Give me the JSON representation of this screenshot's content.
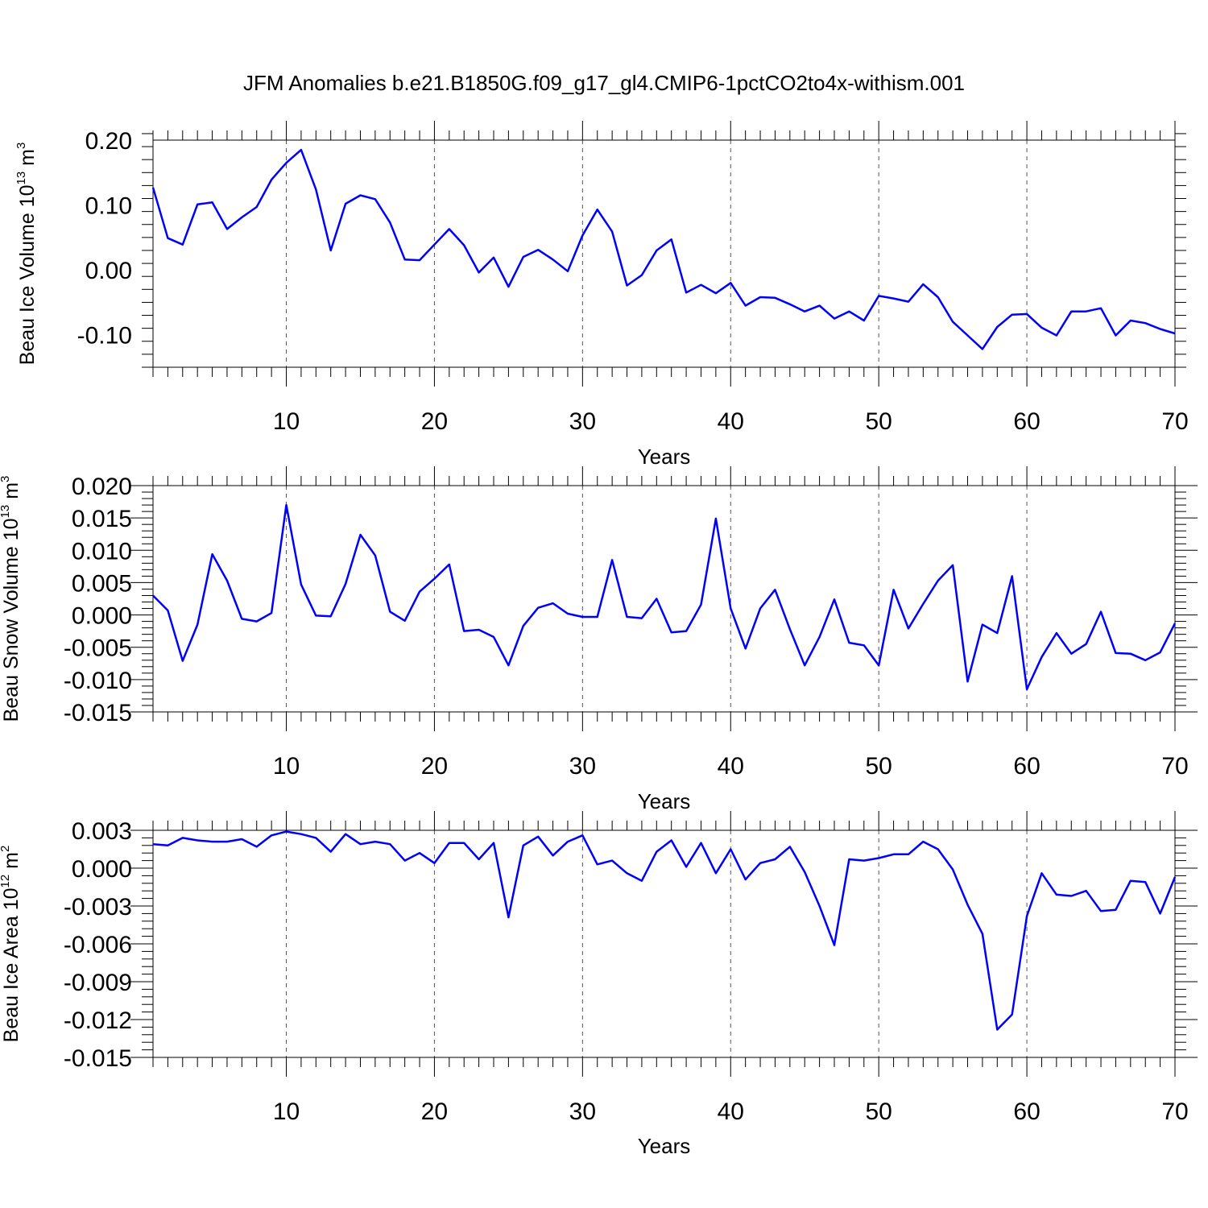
{
  "title": "JFM Anomalies b.e21.B1850G.f09_g17_gl4.CMIP6-1pctCO2to4x-withism.001",
  "series_color": "#0000ff",
  "chart_data": [
    {
      "type": "line",
      "ylabel": {
        "base": "Beau Ice Volume 10",
        "exponent": "13",
        "unit_base": " m",
        "unit_exponent": "3"
      },
      "xlabel": "Years",
      "xlim": [
        1,
        70
      ],
      "ylim": [
        -0.15,
        0.2
      ],
      "xticks": [
        "10",
        "20",
        "30",
        "40",
        "50",
        "60",
        "70"
      ],
      "yticks": [
        "-0.10",
        "0.00",
        "0.10",
        "0.20"
      ],
      "grid": "vertical dashed at major x ticks",
      "x": [
        1,
        2,
        3,
        4,
        5,
        6,
        7,
        8,
        9,
        10,
        11,
        12,
        13,
        14,
        15,
        16,
        17,
        18,
        19,
        20,
        21,
        22,
        23,
        24,
        25,
        26,
        27,
        28,
        29,
        30,
        31,
        32,
        33,
        34,
        35,
        36,
        37,
        38,
        39,
        40,
        41,
        42,
        43,
        44,
        45,
        46,
        47,
        48,
        49,
        50,
        51,
        52,
        53,
        54,
        55,
        56,
        57,
        58,
        59,
        60,
        61,
        62,
        63,
        64,
        65,
        66,
        67,
        68,
        69,
        70
      ],
      "values": [
        0.127,
        0.049,
        0.039,
        0.101,
        0.104,
        0.063,
        0.081,
        0.097,
        0.139,
        0.165,
        0.185,
        0.124,
        0.03,
        0.102,
        0.115,
        0.109,
        0.073,
        0.016,
        0.015,
        0.039,
        0.063,
        0.038,
        -0.004,
        0.019,
        -0.026,
        0.02,
        0.031,
        0.016,
        -0.002,
        0.053,
        0.093,
        0.059,
        -0.024,
        -0.008,
        0.03,
        0.047,
        -0.035,
        -0.023,
        -0.036,
        -0.02,
        -0.055,
        -0.042,
        -0.043,
        -0.053,
        -0.064,
        -0.055,
        -0.075,
        -0.064,
        -0.078,
        -0.04,
        -0.044,
        -0.049,
        -0.022,
        -0.042,
        -0.08,
        -0.101,
        -0.122,
        -0.088,
        -0.069,
        -0.068,
        -0.089,
        -0.101,
        -0.064,
        -0.064,
        -0.059,
        -0.101,
        -0.078,
        -0.082,
        -0.091,
        -0.098
      ]
    },
    {
      "type": "line",
      "ylabel": {
        "base": "Beau Snow Volume 10",
        "exponent": "13",
        "unit_base": " m",
        "unit_exponent": "3"
      },
      "xlabel": "Years",
      "xlim": [
        1,
        70
      ],
      "ylim": [
        -0.015,
        0.02
      ],
      "xticks": [
        "10",
        "20",
        "30",
        "40",
        "50",
        "60",
        "70"
      ],
      "yticks": [
        "-0.015",
        "-0.010",
        "-0.005",
        "0.000",
        "0.005",
        "0.010",
        "0.015",
        "0.020"
      ],
      "grid": "vertical dashed at major x ticks",
      "x": [
        1,
        2,
        3,
        4,
        5,
        6,
        7,
        8,
        9,
        10,
        11,
        12,
        13,
        14,
        15,
        16,
        17,
        18,
        19,
        20,
        21,
        22,
        23,
        24,
        25,
        26,
        27,
        28,
        29,
        30,
        31,
        32,
        33,
        34,
        35,
        36,
        37,
        38,
        39,
        40,
        41,
        42,
        43,
        44,
        45,
        46,
        47,
        48,
        49,
        50,
        51,
        52,
        53,
        54,
        55,
        56,
        57,
        58,
        59,
        60,
        61,
        62,
        63,
        64,
        65,
        66,
        67,
        68,
        69,
        70
      ],
      "values": [
        0.003,
        0.0007,
        -0.0071,
        -0.0015,
        0.0094,
        0.0053,
        -0.0006,
        -0.001,
        0.0003,
        0.017,
        0.0047,
        -0.0001,
        -0.0002,
        0.0048,
        0.0124,
        0.0092,
        0.0005,
        -0.0009,
        0.0036,
        0.0056,
        0.0078,
        -0.0025,
        -0.0023,
        -0.0034,
        -0.0078,
        -0.0017,
        0.0011,
        0.0018,
        0.0002,
        -0.0003,
        -0.0003,
        0.0085,
        -0.0003,
        -0.0005,
        0.0025,
        -0.0027,
        -0.0025,
        0.0016,
        0.0149,
        0.001,
        -0.0052,
        0.001,
        0.0039,
        -0.0022,
        -0.0078,
        -0.0034,
        0.0024,
        -0.0043,
        -0.0047,
        -0.0078,
        0.0039,
        -0.0021,
        0.0017,
        0.0053,
        0.0077,
        -0.0103,
        -0.0015,
        -0.0028,
        0.006,
        -0.0115,
        -0.0065,
        -0.0028,
        -0.006,
        -0.0045,
        0.0005,
        -0.0059,
        -0.006,
        -0.007,
        -0.0058,
        -0.0013
      ]
    },
    {
      "type": "line",
      "ylabel": {
        "base": "Beau Ice Area 10",
        "exponent": "12",
        "unit_base": " m",
        "unit_exponent": "2"
      },
      "xlabel": "Years",
      "xlim": [
        1,
        70
      ],
      "ylim": [
        -0.015,
        0.003
      ],
      "xticks": [
        "10",
        "20",
        "30",
        "40",
        "50",
        "60",
        "70"
      ],
      "yticks": [
        "-0.015",
        "-0.012",
        "-0.009",
        "-0.006",
        "-0.003",
        "0.000",
        "0.003"
      ],
      "grid": "vertical dashed at major x ticks",
      "x": [
        1,
        2,
        3,
        4,
        5,
        6,
        7,
        8,
        9,
        10,
        11,
        12,
        13,
        14,
        15,
        16,
        17,
        18,
        19,
        20,
        21,
        22,
        23,
        24,
        25,
        26,
        27,
        28,
        29,
        30,
        31,
        32,
        33,
        34,
        35,
        36,
        37,
        38,
        39,
        40,
        41,
        42,
        43,
        44,
        45,
        46,
        47,
        48,
        49,
        50,
        51,
        52,
        53,
        54,
        55,
        56,
        57,
        58,
        59,
        60,
        61,
        62,
        63,
        64,
        65,
        66,
        67,
        68,
        69,
        70
      ],
      "values": [
        0.0019,
        0.0018,
        0.0024,
        0.0022,
        0.0021,
        0.0021,
        0.0023,
        0.0017,
        0.0026,
        0.0029,
        0.0027,
        0.0024,
        0.0013,
        0.0027,
        0.0019,
        0.0021,
        0.0019,
        0.0006,
        0.0012,
        0.0004,
        0.002,
        0.002,
        0.0007,
        0.002,
        -0.0039,
        0.0018,
        0.0025,
        0.001,
        0.0021,
        0.0026,
        0.0003,
        0.0006,
        -0.0004,
        -0.001,
        0.0013,
        0.0022,
        0.0001,
        0.002,
        -0.0004,
        0.0015,
        -0.0009,
        0.0004,
        0.0007,
        0.0017,
        -0.0003,
        -0.003,
        -0.0061,
        0.0007,
        0.0006,
        0.0008,
        0.0011,
        0.0011,
        0.0021,
        0.0015,
        -0.0001,
        -0.0029,
        -0.0052,
        -0.0128,
        -0.0116,
        -0.0038,
        -0.0004,
        -0.0021,
        -0.0022,
        -0.0018,
        -0.0034,
        -0.0033,
        -0.001,
        -0.0011,
        -0.0036,
        -0.0007
      ]
    }
  ]
}
